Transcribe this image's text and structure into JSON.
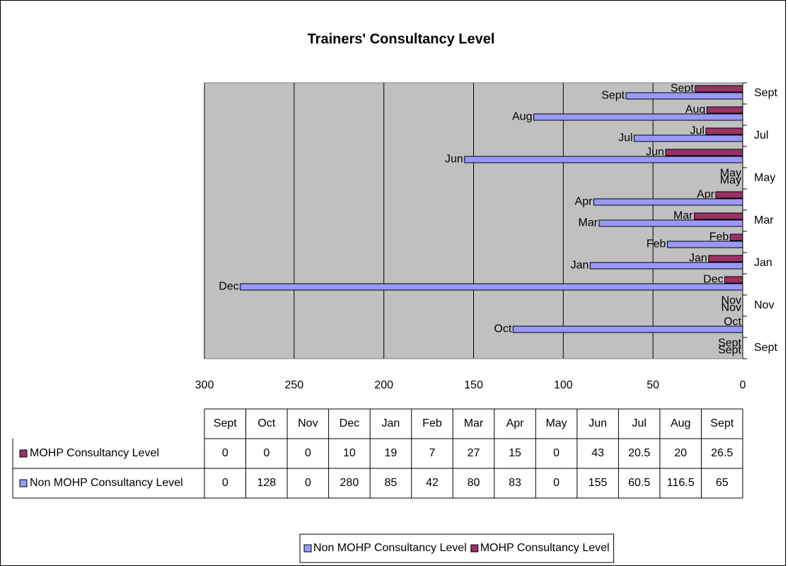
{
  "chart_data": {
    "type": "bar",
    "orientation": "horizontal",
    "title": "Trainers' Consultancy Level",
    "categories": [
      "Sept",
      "Oct",
      "Nov",
      "Dec",
      "Jan",
      "Feb",
      "Mar",
      "Apr",
      "May",
      "Jun",
      "Jul",
      "Aug",
      "Sept"
    ],
    "series": [
      {
        "name": "MOHP Consultancy Level",
        "color": "#993366",
        "values": [
          0,
          0,
          0,
          10,
          19,
          7,
          27,
          15,
          0,
          43,
          20.5,
          20,
          26.5
        ]
      },
      {
        "name": "Non MOHP Consultancy Level",
        "color": "#9999ff",
        "values": [
          0,
          128,
          0,
          280,
          85,
          42,
          80,
          83,
          0,
          155,
          60.5,
          116.5,
          65
        ]
      }
    ],
    "xlim": [
      300,
      0
    ],
    "xticks": [
      300,
      250,
      200,
      150,
      100,
      50,
      0
    ],
    "grid": true,
    "legend": "bottom",
    "data_table": true
  }
}
